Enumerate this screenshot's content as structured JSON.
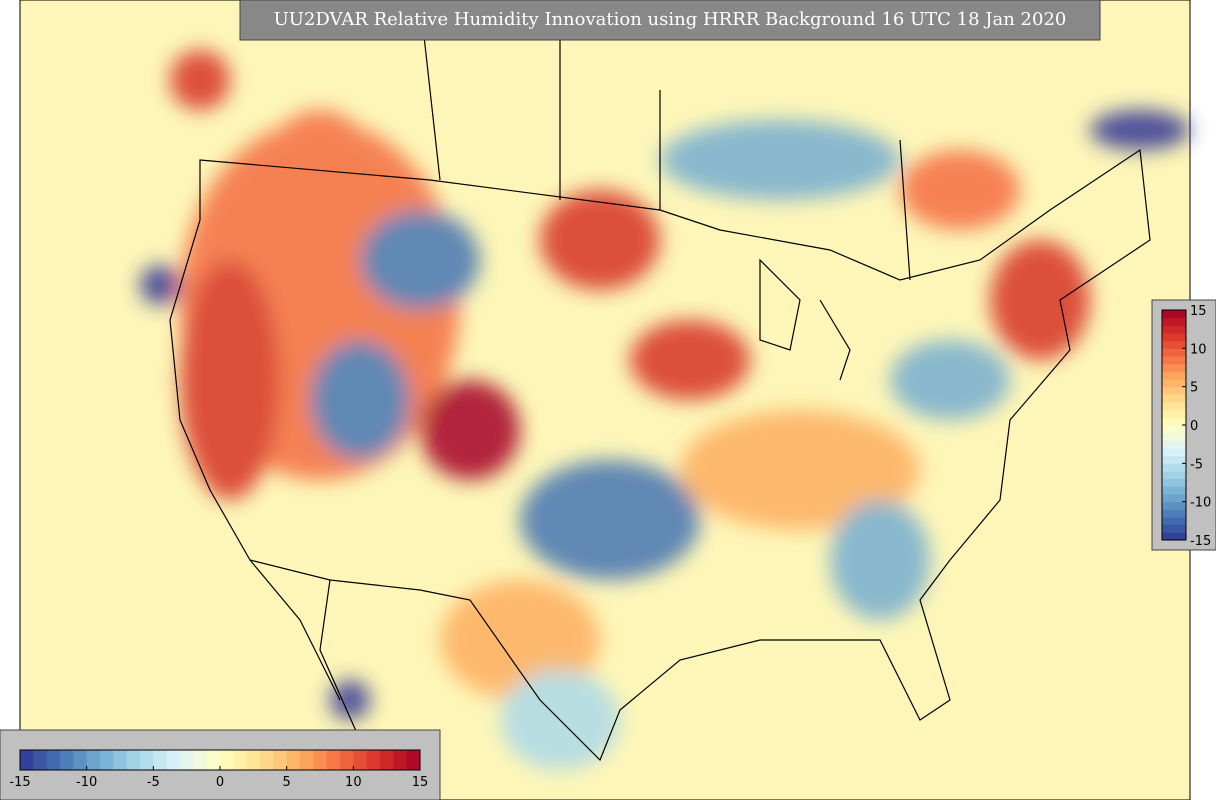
{
  "map": {
    "title": "UU2DVAR Relative Humidity Innovation using HRRR Background 16 UTC 18 Jan 2020",
    "colorbar": {
      "range": [
        -15,
        15
      ],
      "ticks": [
        -15,
        -10,
        -5,
        0,
        5,
        10,
        15
      ],
      "colors": [
        "#313695",
        "#4575b4",
        "#74add1",
        "#abd9e9",
        "#e0f3f8",
        "#ffffbf",
        "#fee090",
        "#fdae61",
        "#f46d43",
        "#d73027",
        "#a50026"
      ]
    }
  }
}
